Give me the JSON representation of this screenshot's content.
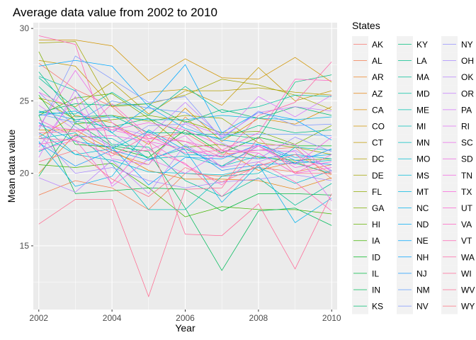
{
  "chart_data": {
    "type": "line",
    "title": "Average data value from 2002 to 2010",
    "xlabel": "Year",
    "ylabel": "Mean data value",
    "xlim": [
      2001.85,
      2010.15
    ],
    "ylim": [
      10.6,
      30.4
    ],
    "x_ticks": [
      2002,
      2004,
      2006,
      2008,
      2010
    ],
    "x_tick_labels": [
      "2002",
      "2004",
      "2006",
      "2008",
      "2010"
    ],
    "y_ticks": [
      15,
      20,
      25,
      30
    ],
    "y_tick_labels": [
      "15",
      "20",
      "25",
      "30"
    ],
    "grid": true,
    "legend": {
      "title": "States",
      "placement": "right",
      "columns": 3
    },
    "x": [
      2002,
      2003,
      2004,
      2005,
      2006,
      2007,
      2008,
      2009,
      2010
    ],
    "series": [
      {
        "name": "AK",
        "color": "#F8766D",
        "values": [
          27.6,
          25.8,
          24.6,
          22.4,
          22.8,
          21.3,
          21.6,
          21.8,
          19.6
        ]
      },
      {
        "name": "AL",
        "color": "#F47D4E",
        "values": [
          18.5,
          19.5,
          19.0,
          17.5,
          20.0,
          19.8,
          20.4,
          20.1,
          20.6
        ]
      },
      {
        "name": "AR",
        "color": "#EE8427",
        "values": [
          20.0,
          22.7,
          21.4,
          20.6,
          23.9,
          21.6,
          20.2,
          20.8,
          19.9
        ]
      },
      {
        "name": "AZ",
        "color": "#E68613",
        "values": [
          23.0,
          23.0,
          21.6,
          20.2,
          19.6,
          19.6,
          19.5,
          18.9,
          19.7
        ]
      },
      {
        "name": "CA",
        "color": "#DD8D00",
        "values": [
          22.5,
          24.0,
          23.5,
          22.0,
          24.5,
          22.2,
          23.8,
          23.4,
          24.6
        ]
      },
      {
        "name": "CO",
        "color": "#D19400",
        "values": [
          29.2,
          29.2,
          28.8,
          26.4,
          27.9,
          26.6,
          26.5,
          28.0,
          26.3
        ]
      },
      {
        "name": "CT",
        "color": "#C49A00",
        "values": [
          27.8,
          27.4,
          24.6,
          25.6,
          25.8,
          24.7,
          27.3,
          25.0,
          25.7
        ]
      },
      {
        "name": "DC",
        "color": "#B5A000",
        "values": [
          25.2,
          24.6,
          26.3,
          24.1,
          25.7,
          25.7,
          25.9,
          25.6,
          25.4
        ]
      },
      {
        "name": "DE",
        "color": "#A3A500",
        "values": [
          29.0,
          29.1,
          24.6,
          24.8,
          25.4,
          26.5,
          26.1,
          25.4,
          24.4
        ]
      },
      {
        "name": "FL",
        "color": "#90AA00",
        "values": [
          25.2,
          23.7,
          24.0,
          23.6,
          24.0,
          23.8,
          22.1,
          21.8,
          21.3
        ]
      },
      {
        "name": "GA",
        "color": "#7CAE00",
        "values": [
          28.4,
          23.4,
          23.7,
          24.0,
          23.6,
          22.8,
          22.9,
          22.0,
          23.3
        ]
      },
      {
        "name": "HI",
        "color": "#63B200",
        "values": [
          24.0,
          25.2,
          25.5,
          23.8,
          21.8,
          22.0,
          21.1,
          20.9,
          21.0
        ]
      },
      {
        "name": "IA",
        "color": "#41B500",
        "values": [
          20.6,
          20.4,
          20.7,
          19.0,
          17.0,
          17.7,
          17.5,
          17.5,
          17.2
        ]
      },
      {
        "name": "ID",
        "color": "#00B81F",
        "values": [
          25.4,
          22.0,
          21.8,
          21.1,
          23.0,
          21.4,
          22.5,
          21.9,
          21.9
        ]
      },
      {
        "name": "IL",
        "color": "#00BA42",
        "values": [
          24.0,
          18.6,
          18.8,
          19.0,
          18.9,
          17.4,
          18.6,
          18.6,
          18.5
        ]
      },
      {
        "name": "IN",
        "color": "#00BB5B",
        "values": [
          19.8,
          23.5,
          21.9,
          21.5,
          17.6,
          13.3,
          17.4,
          17.6,
          16.4
        ]
      },
      {
        "name": "KS",
        "color": "#00BD70",
        "values": [
          24.2,
          24.8,
          24.7,
          24.8,
          23.5,
          24.4,
          23.8,
          24.6,
          24.0
        ]
      },
      {
        "name": "KY",
        "color": "#00BF7D",
        "values": [
          26.0,
          23.6,
          23.2,
          23.8,
          22.7,
          22.7,
          22.4,
          26.3,
          26.8
        ]
      },
      {
        "name": "LA",
        "color": "#00C08B",
        "values": [
          27.0,
          23.9,
          24.0,
          22.8,
          22.8,
          22.4,
          23.3,
          22.8,
          23.0
        ]
      },
      {
        "name": "MA",
        "color": "#00C097",
        "values": [
          26.6,
          24.5,
          22.0,
          21.8,
          19.5,
          18.4,
          19.7,
          17.8,
          19.3
        ]
      },
      {
        "name": "MD",
        "color": "#00C1A3",
        "values": [
          24.2,
          24.1,
          25.6,
          24.0,
          26.0,
          24.2,
          24.6,
          25.4,
          25.3
        ]
      },
      {
        "name": "ME",
        "color": "#00C1AE",
        "values": [
          26.7,
          25.7,
          22.8,
          21.0,
          21.7,
          20.5,
          21.9,
          20.7,
          20.0
        ]
      },
      {
        "name": "MI",
        "color": "#00BFBA",
        "values": [
          22.4,
          22.8,
          20.6,
          17.5,
          17.5,
          19.8,
          20.0,
          21.8,
          21.6
        ]
      },
      {
        "name": "MN",
        "color": "#00BFC4",
        "values": [
          21.5,
          22.6,
          22.4,
          21.0,
          21.2,
          20.5,
          21.2,
          20.7,
          20.9
        ]
      },
      {
        "name": "MO",
        "color": "#00BDD0",
        "values": [
          23.5,
          21.3,
          20.9,
          20.1,
          20.0,
          19.9,
          20.4,
          19.3,
          20.2
        ]
      },
      {
        "name": "MS",
        "color": "#00BAD9",
        "values": [
          22.8,
          21.3,
          21.7,
          22.9,
          21.3,
          21.2,
          21.0,
          21.3,
          21.0
        ]
      },
      {
        "name": "MT",
        "color": "#00B7E3",
        "values": [
          24.3,
          23.7,
          23.9,
          23.7,
          23.7,
          24.0,
          23.8,
          23.7,
          23.9
        ]
      },
      {
        "name": "NC",
        "color": "#00B2EC",
        "values": [
          22.2,
          19.1,
          19.8,
          23.0,
          21.6,
          18.0,
          20.6,
          16.6,
          18.3
        ]
      },
      {
        "name": "ND",
        "color": "#00ADF4",
        "values": [
          24.0,
          24.3,
          22.8,
          24.6,
          23.1,
          22.3,
          22.0,
          21.1,
          21.3
        ]
      },
      {
        "name": "NE",
        "color": "#00A8FF",
        "values": [
          27.4,
          27.8,
          27.4,
          24.6,
          27.5,
          22.8,
          24.2,
          23.7,
          22.3
        ]
      },
      {
        "name": "NH",
        "color": "#00A2FF",
        "values": [
          23.5,
          22.2,
          21.8,
          19.2,
          21.1,
          21.0,
          22.0,
          20.9,
          20.6
        ]
      },
      {
        "name": "NJ",
        "color": "#199CFF",
        "values": [
          22.1,
          20.5,
          21.6,
          20.9,
          21.9,
          20.2,
          20.6,
          20.7,
          21.7
        ]
      },
      {
        "name": "NM",
        "color": "#619CFF",
        "values": [
          24.1,
          23.5,
          25.0,
          24.5,
          24.2,
          22.7,
          22.7,
          22.7,
          22.6
        ]
      },
      {
        "name": "NV",
        "color": "#7E96FF",
        "values": [
          23.0,
          28.1,
          26.5,
          24.9,
          25.3,
          22.4,
          24.3,
          23.3,
          23.4
        ]
      },
      {
        "name": "NY",
        "color": "#9590FF",
        "values": [
          25.6,
          23.2,
          21.8,
          23.3,
          23.4,
          22.1,
          21.0,
          22.5,
          21.5
        ]
      },
      {
        "name": "OH",
        "color": "#A88AFF",
        "values": [
          22.7,
          20.0,
          20.4,
          19.5,
          19.0,
          19.4,
          19.6,
          19.9,
          19.5
        ]
      },
      {
        "name": "OK",
        "color": "#B983FF",
        "values": [
          19.7,
          18.7,
          20.9,
          18.6,
          22.0,
          20.4,
          20.8,
          21.6,
          20.2
        ]
      },
      {
        "name": "OR",
        "color": "#C77CFF",
        "values": [
          24.7,
          23.0,
          23.2,
          22.6,
          24.9,
          22.5,
          24.2,
          24.6,
          24.3
        ]
      },
      {
        "name": "PA",
        "color": "#D575FE",
        "values": [
          21.1,
          25.8,
          21.0,
          20.6,
          23.5,
          22.6,
          25.3,
          23.9,
          25.4
        ]
      },
      {
        "name": "RI",
        "color": "#E06FF5",
        "values": [
          21.8,
          25.3,
          19.1,
          21.0,
          20.0,
          21.5,
          21.6,
          21.5,
          18.1
        ]
      },
      {
        "name": "SC",
        "color": "#E96AEA",
        "values": [
          23.2,
          27.1,
          23.5,
          21.6,
          22.6,
          20.4,
          21.9,
          22.0,
          20.1
        ]
      },
      {
        "name": "SD",
        "color": "#F066E1",
        "values": [
          23.7,
          22.5,
          22.6,
          22.2,
          21.7,
          21.1,
          21.9,
          20.4,
          20.8
        ]
      },
      {
        "name": "TN",
        "color": "#F564E3",
        "values": [
          25.6,
          24.4,
          23.0,
          23.5,
          23.0,
          21.9,
          21.9,
          20.6,
          22.5
        ]
      },
      {
        "name": "TX",
        "color": "#FA62DB",
        "values": [
          23.3,
          23.0,
          23.0,
          22.4,
          22.2,
          21.6,
          21.4,
          20.0,
          20.4
        ]
      },
      {
        "name": "UT",
        "color": "#FD61D1",
        "values": [
          21.6,
          22.3,
          19.3,
          22.2,
          20.6,
          19.2,
          21.4,
          20.0,
          21.3
        ]
      },
      {
        "name": "VA",
        "color": "#FF61C3",
        "values": [
          22.0,
          22.4,
          24.8,
          22.6,
          21.4,
          21.6,
          22.8,
          26.5,
          26.4
        ]
      },
      {
        "name": "VT",
        "color": "#FF63B6",
        "values": [
          29.5,
          28.9,
          21.4,
          21.6,
          20.7,
          18.4,
          20.8,
          19.4,
          17.4
        ]
      },
      {
        "name": "WA",
        "color": "#FF66A8",
        "values": [
          22.4,
          22.3,
          21.2,
          22.7,
          22.2,
          21.1,
          24.0,
          24.9,
          27.7
        ]
      },
      {
        "name": "WI",
        "color": "#FF6A98",
        "values": [
          22.8,
          22.9,
          23.2,
          22.3,
          15.8,
          15.7,
          17.9,
          13.4,
          18.6
        ]
      },
      {
        "name": "WV",
        "color": "#FF6C91",
        "values": [
          16.5,
          18.2,
          18.2,
          11.5,
          18.9,
          19.0,
          22.5,
          20.0,
          20.0
        ]
      },
      {
        "name": "WY",
        "color": "#FC717F",
        "values": [
          20.8,
          21.6,
          19.6,
          18.4,
          20.4,
          19.4,
          20.5,
          21.3,
          20.0
        ]
      }
    ]
  }
}
